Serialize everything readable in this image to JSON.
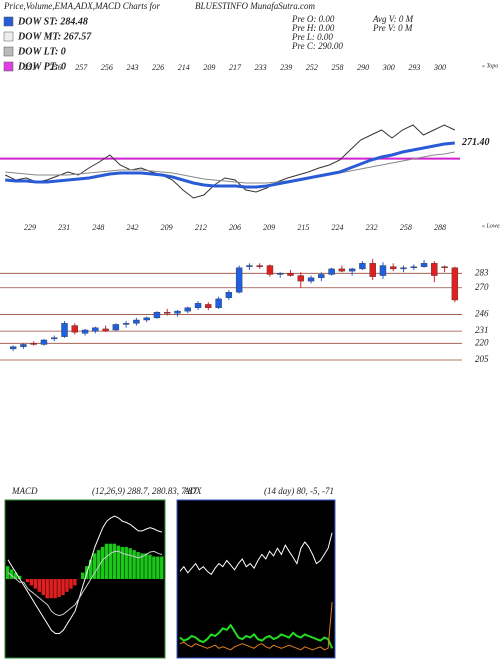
{
  "header": {
    "left": "Price,Volume,EMA,ADX,MACD Charts for",
    "right": "BLUESTINFO MunafaSutra.com"
  },
  "legend": [
    {
      "label": "DOW ST: 284.48",
      "color": "#2a5bd7"
    },
    {
      "label": "DOW MT: 267.57",
      "color": "#eeeeee"
    },
    {
      "label": "DOW LT: 0",
      "color": "#bbbbbb"
    },
    {
      "label": "DOW PT: 0",
      "color": "#e040e0"
    }
  ],
  "info": [
    "Pre  O: 0.00",
    "Pre  H: 0.00",
    "Pre  L: 0.00",
    "Pre  C: 290.00"
  ],
  "info2": [
    "Avg V: 0  M",
    "Pre  V: 0  M"
  ],
  "chart_data": [
    {
      "type": "line",
      "corner_label": "« Topo",
      "top_labels": [
        251,
        256,
        257,
        256,
        243,
        226,
        214,
        209,
        217,
        233,
        239,
        252,
        258,
        290,
        300,
        293,
        300
      ],
      "ylim": [
        230,
        370
      ],
      "hline": {
        "value": 271.4,
        "label": "271.40",
        "color": "#d020d0"
      },
      "series": [
        {
          "color": "#333333",
          "width": 1,
          "values": [
            255,
            250,
            252,
            248,
            250,
            254,
            258,
            255,
            262,
            268,
            275,
            265,
            260,
            262,
            258,
            255,
            250,
            240,
            232,
            235,
            245,
            252,
            250,
            240,
            238,
            242,
            248,
            252,
            255,
            258,
            262,
            265,
            270,
            280,
            290,
            295,
            300,
            292,
            300,
            305,
            295,
            300,
            305,
            300
          ]
        },
        {
          "color": "#888888",
          "width": 1,
          "values": [
            258,
            257,
            256,
            255,
            255,
            255,
            255,
            256,
            257,
            258,
            259,
            260,
            260,
            260,
            259,
            258,
            257,
            255,
            253,
            251,
            250,
            249,
            248,
            247,
            247,
            247,
            248,
            249,
            250,
            252,
            253,
            255,
            257,
            259,
            261,
            263,
            265,
            267,
            269,
            271,
            273,
            275,
            276,
            278
          ]
        },
        {
          "color": "#2a5bd7",
          "width": 3,
          "values": [
            250,
            249,
            249,
            248,
            248,
            249,
            250,
            251,
            252,
            254,
            256,
            257,
            257,
            257,
            256,
            255,
            253,
            250,
            247,
            245,
            244,
            244,
            244,
            243,
            243,
            244,
            246,
            248,
            250,
            252,
            254,
            256,
            258,
            262,
            266,
            270,
            273,
            275,
            278,
            280,
            282,
            284,
            286,
            287
          ]
        }
      ]
    },
    {
      "type": "candlestick",
      "corner_label": "« Lowes",
      "top_labels": [
        229,
        231,
        248,
        242,
        209,
        212,
        206,
        209,
        215,
        224,
        232,
        258,
        288
      ],
      "ylim": [
        187,
        304
      ],
      "yticks": [
        283,
        270,
        246,
        231,
        220,
        205
      ],
      "line_color": "#9a4a3a",
      "up_color": "#1f5fe0",
      "down_color": "#e02020",
      "ohlc": [
        [
          215,
          218,
          213,
          217
        ],
        [
          217,
          220,
          215,
          219
        ],
        [
          220,
          222,
          218,
          219
        ],
        [
          219,
          224,
          218,
          223
        ],
        [
          224,
          227,
          222,
          225
        ],
        [
          226,
          240,
          225,
          238
        ],
        [
          236,
          238,
          228,
          230
        ],
        [
          229,
          233,
          227,
          232
        ],
        [
          231,
          235,
          229,
          234
        ],
        [
          233,
          236,
          230,
          231
        ],
        [
          232,
          238,
          231,
          237
        ],
        [
          237,
          240,
          234,
          238
        ],
        [
          238,
          243,
          236,
          241
        ],
        [
          241,
          244,
          239,
          243
        ],
        [
          243,
          249,
          242,
          248
        ],
        [
          248,
          251,
          245,
          247
        ],
        [
          247,
          250,
          244,
          249
        ],
        [
          249,
          253,
          247,
          252
        ],
        [
          252,
          258,
          250,
          256
        ],
        [
          255,
          257,
          250,
          252
        ],
        [
          252,
          262,
          251,
          260
        ],
        [
          261,
          268,
          259,
          266
        ],
        [
          266,
          290,
          265,
          288
        ],
        [
          289,
          292,
          286,
          290
        ],
        [
          290,
          292,
          287,
          289
        ],
        [
          290,
          291,
          280,
          282
        ],
        [
          282,
          284,
          279,
          283
        ],
        [
          283,
          286,
          280,
          281
        ],
        [
          281,
          284,
          270,
          276
        ],
        [
          276,
          281,
          274,
          279
        ],
        [
          279,
          284,
          276,
          282
        ],
        [
          282,
          288,
          281,
          287
        ],
        [
          287,
          290,
          284,
          285
        ],
        [
          285,
          288,
          281,
          287
        ],
        [
          287,
          294,
          286,
          292
        ],
        [
          292,
          296,
          277,
          280
        ],
        [
          281,
          293,
          278,
          290
        ],
        [
          289,
          292,
          285,
          287
        ],
        [
          287,
          290,
          284,
          288
        ],
        [
          288,
          291,
          286,
          289
        ],
        [
          289,
          295,
          288,
          292
        ],
        [
          292,
          294,
          275,
          281
        ],
        [
          289,
          290,
          284,
          288
        ],
        [
          288,
          289,
          257,
          259
        ]
      ]
    },
    {
      "type": "macd",
      "title": "MACD",
      "subtitle": "(12,26,9) 288.7, 280.83, 7.87",
      "ylim": [
        -12,
        12
      ],
      "histogram": {
        "positive_color": "#19c819",
        "negative_color": "#e02020",
        "values": [
          2,
          1.5,
          1,
          0.5,
          0,
          -0.5,
          -1,
          -1.5,
          -2,
          -2.5,
          -3,
          -3,
          -3,
          -2.8,
          -2.5,
          -2,
          -1.5,
          -1,
          0,
          1,
          2,
          3,
          4,
          4.5,
          5,
          5.5,
          5.5,
          5.5,
          5.2,
          5,
          5,
          4.8,
          4.5,
          4.2,
          4,
          4,
          3.8,
          3.5,
          3.5,
          3.5
        ]
      },
      "series": [
        {
          "color": "#ffffff",
          "width": 1,
          "values": [
            3,
            2,
            1,
            0,
            -1,
            -2,
            -3,
            -4,
            -5,
            -6,
            -7,
            -8,
            -8.5,
            -8.5,
            -8,
            -7,
            -6,
            -5,
            -3,
            -1,
            1,
            3,
            5,
            6.5,
            8,
            9,
            9.5,
            9.8,
            9.5,
            9,
            8.8,
            8.5,
            8,
            7.5,
            7.5,
            7.8,
            8,
            7.8,
            7.5,
            7.3
          ]
        },
        {
          "color": "#cccccc",
          "width": 1,
          "values": [
            1,
            0.5,
            0,
            -0.5,
            -0.5,
            -1.5,
            -2,
            -2.5,
            -3,
            -3.5,
            -4,
            -5,
            -5.5,
            -5.7,
            -5.5,
            -5,
            -4.5,
            -4,
            -3,
            -2,
            -1,
            0,
            1,
            2,
            3,
            3.5,
            4,
            4.3,
            4.3,
            4,
            3.8,
            3.7,
            3.5,
            3.3,
            3.5,
            3.8,
            4.2,
            4.3,
            4,
            3.8
          ]
        }
      ]
    },
    {
      "type": "line",
      "title": "ADX",
      "subtitle": "(14 day) 80, -5, -71",
      "ylim": [
        0,
        100
      ],
      "series": [
        {
          "color": "#ffffff",
          "width": 1,
          "values": [
            55,
            58,
            54,
            57,
            60,
            56,
            58,
            55,
            53,
            57,
            60,
            58,
            62,
            59,
            56,
            60,
            63,
            58,
            60,
            57,
            62,
            66,
            63,
            68,
            65,
            70,
            66,
            72,
            68,
            64,
            60,
            70,
            74,
            71,
            66,
            60,
            62,
            66,
            70,
            80
          ]
        },
        {
          "color": "#22dd22",
          "width": 2,
          "values": [
            12,
            10,
            11,
            13,
            12,
            10,
            9,
            11,
            14,
            13,
            15,
            18,
            17,
            20,
            16,
            12,
            11,
            13,
            12,
            14,
            11,
            10,
            12,
            13,
            11,
            12,
            14,
            13,
            12,
            15,
            13,
            12,
            14,
            13,
            12,
            11,
            10,
            12,
            11,
            5
          ]
        },
        {
          "color": "#e08020",
          "width": 1,
          "values": [
            8,
            9,
            7,
            6,
            8,
            7,
            6,
            5,
            6,
            7,
            5,
            6,
            5,
            4,
            6,
            7,
            8,
            7,
            6,
            5,
            7,
            8,
            6,
            5,
            7,
            6,
            5,
            6,
            7,
            6,
            5,
            4,
            6,
            5,
            4,
            5,
            6,
            4,
            5,
            35
          ]
        }
      ]
    }
  ]
}
